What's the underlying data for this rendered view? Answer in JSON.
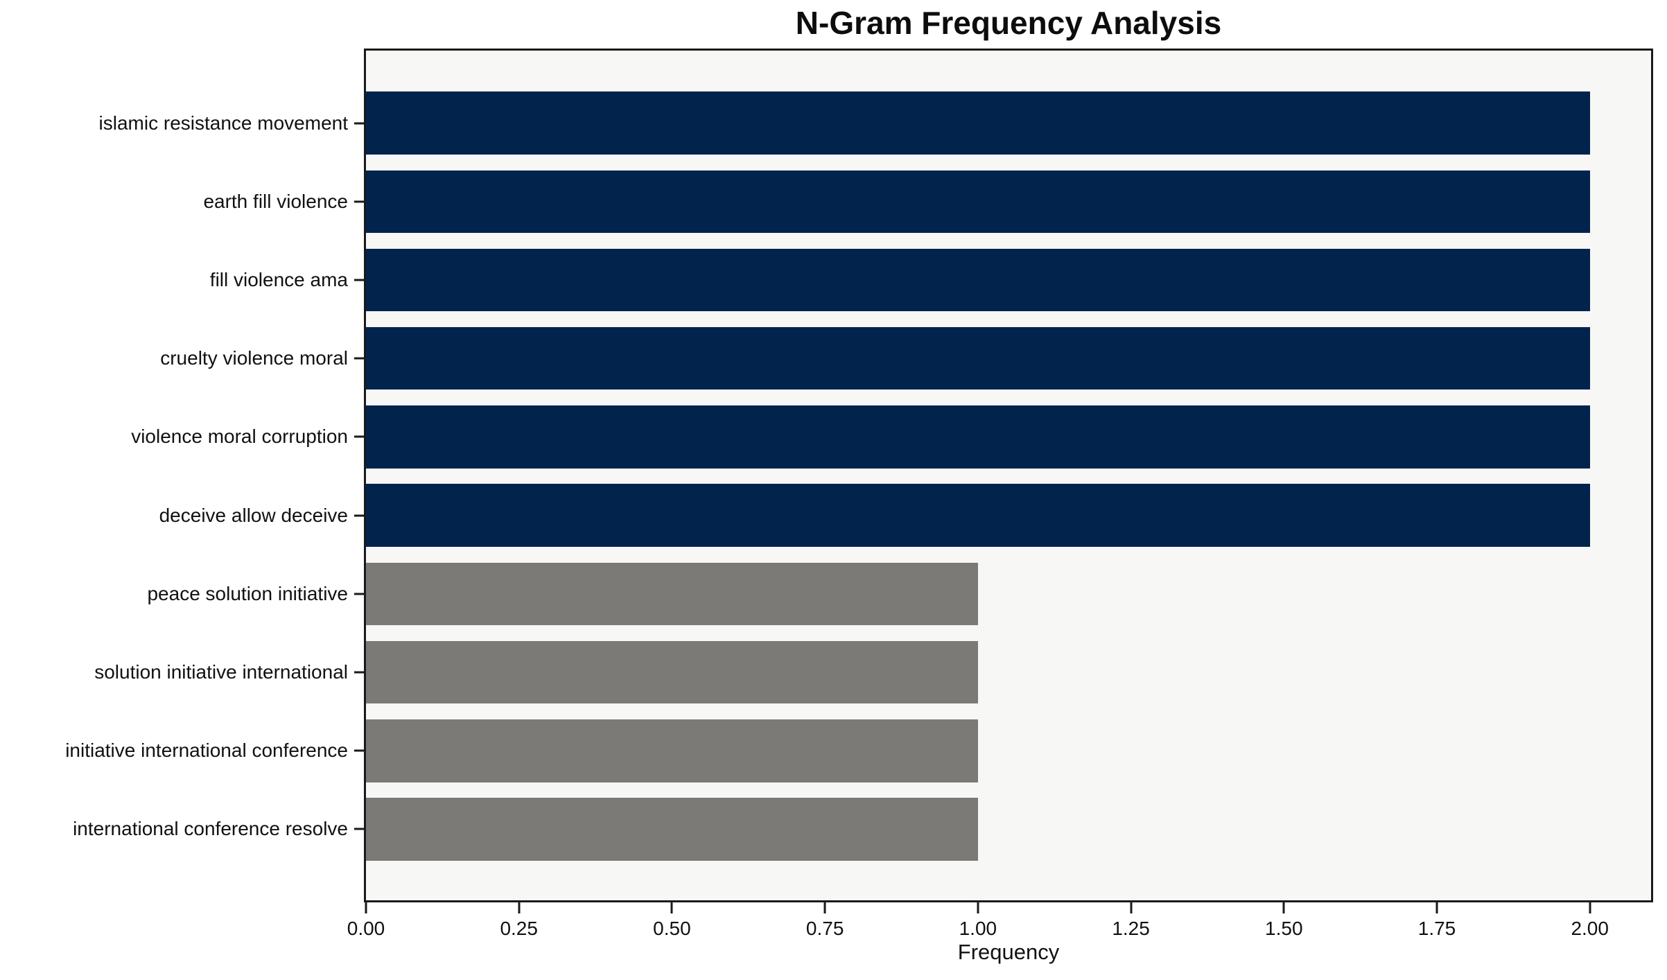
{
  "chart_data": {
    "type": "bar",
    "orientation": "horizontal",
    "title": "N-Gram Frequency Analysis",
    "xlabel": "Frequency",
    "ylabel": "",
    "categories": [
      "islamic resistance movement",
      "earth fill violence",
      "fill violence ama",
      "cruelty violence moral",
      "violence moral corruption",
      "deceive allow deceive",
      "peace solution initiative",
      "solution initiative international",
      "initiative international conference",
      "international conference resolve"
    ],
    "values": [
      2,
      2,
      2,
      2,
      2,
      2,
      1,
      1,
      1,
      1
    ],
    "bar_colors": [
      "#02234c",
      "#02234c",
      "#02234c",
      "#02234c",
      "#02234c",
      "#02234c",
      "#7b7a76",
      "#7b7a76",
      "#7b7a76",
      "#7b7a76"
    ],
    "xlim": [
      0,
      2.1
    ],
    "x_ticks": [
      "0.00",
      "0.25",
      "0.50",
      "0.75",
      "1.00",
      "1.25",
      "1.50",
      "1.75",
      "2.00"
    ],
    "grid": false,
    "legend": null,
    "plot_background": "#f7f7f6",
    "figure_background": "#ffffff",
    "bar_height_fraction": 0.8
  }
}
